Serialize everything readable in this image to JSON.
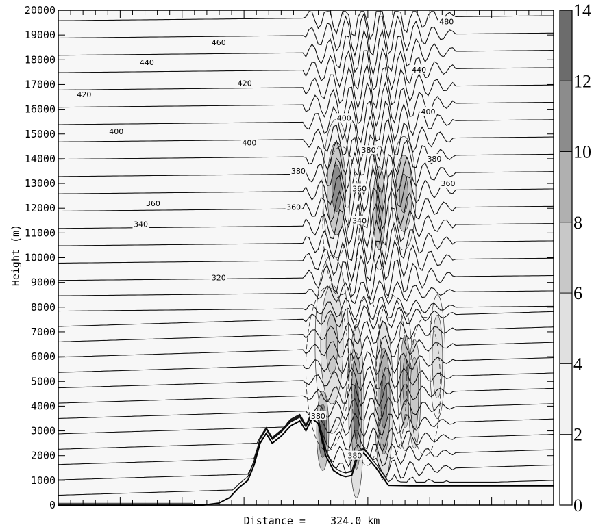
{
  "chart_data": {
    "type": "contour",
    "title": "",
    "xlabel": "Distance =    324.0 km",
    "ylabel": "Height (m)",
    "ylim": [
      0,
      20000
    ],
    "xlim": [
      0,
      324
    ],
    "yticks": [
      0,
      1000,
      2000,
      3000,
      4000,
      5000,
      6000,
      7000,
      8000,
      9000,
      10000,
      11000,
      12000,
      13000,
      14000,
      15000,
      16000,
      17000,
      18000,
      19000,
      20000
    ],
    "ytick_labels": [
      "0",
      "1000",
      "2000",
      "3000",
      "4000",
      "5000",
      "6000",
      "7000",
      "8000",
      "9000",
      "10000",
      "11000",
      "12000",
      "13000",
      "14000",
      "15000",
      "16000",
      "17000",
      "18000",
      "19000",
      "20000"
    ],
    "colorbar": {
      "range": [
        0,
        14
      ],
      "ticks": [
        0,
        2,
        4,
        6,
        8,
        10,
        12,
        14
      ],
      "labels": [
        "0",
        "2",
        "4",
        "6",
        "8",
        "10",
        "12",
        "14"
      ],
      "colors": [
        "#ffffff",
        "#f2f2f2",
        "#e0e0e0",
        "#c8c8c8",
        "#b0b0b0",
        "#8c8c8c",
        "#6c6c6c"
      ]
    },
    "contour_labels": [
      {
        "text": "480",
        "x": 254,
        "y": 19550
      },
      {
        "text": "460",
        "x": 105,
        "y": 18700
      },
      {
        "text": "440",
        "x": 58,
        "y": 17900
      },
      {
        "text": "440",
        "x": 236,
        "y": 17600
      },
      {
        "text": "420",
        "x": 122,
        "y": 17050
      },
      {
        "text": "420",
        "x": 17,
        "y": 16600
      },
      {
        "text": "400",
        "x": 38,
        "y": 15100
      },
      {
        "text": "400",
        "x": 125,
        "y": 14650
      },
      {
        "text": "400",
        "x": 187,
        "y": 15650
      },
      {
        "text": "400",
        "x": 242,
        "y": 15900
      },
      {
        "text": "380",
        "x": 157,
        "y": 13500
      },
      {
        "text": "380",
        "x": 203,
        "y": 14350
      },
      {
        "text": "380",
        "x": 246,
        "y": 14000
      },
      {
        "text": "360",
        "x": 62,
        "y": 12200
      },
      {
        "text": "360",
        "x": 154,
        "y": 12050
      },
      {
        "text": "360",
        "x": 197,
        "y": 12800
      },
      {
        "text": "360",
        "x": 255,
        "y": 13000
      },
      {
        "text": "340",
        "x": 54,
        "y": 11350
      },
      {
        "text": "340",
        "x": 197,
        "y": 11500
      },
      {
        "text": "320",
        "x": 105,
        "y": 9200
      },
      {
        "text": "380",
        "x": 170,
        "y": 3600
      },
      {
        "text": "380",
        "x": 194,
        "y": 2000
      }
    ],
    "terrain": {
      "x": [
        0,
        20,
        40,
        60,
        70,
        80,
        88,
        95,
        105,
        112,
        118,
        124,
        128,
        132,
        136,
        140,
        146,
        152,
        158,
        162,
        166,
        170,
        175,
        180,
        185,
        188,
        192,
        196,
        200,
        208,
        216,
        230,
        260,
        300,
        324
      ],
      "y": [
        0,
        0,
        0,
        0,
        0,
        0,
        0,
        0,
        80,
        300,
        700,
        1000,
        1600,
        2500,
        2900,
        2500,
        2800,
        3200,
        3400,
        3000,
        3500,
        3300,
        2000,
        1400,
        1200,
        1150,
        1200,
        2000,
        2100,
        1500,
        800,
        780,
        780,
        780,
        780
      ]
    }
  }
}
